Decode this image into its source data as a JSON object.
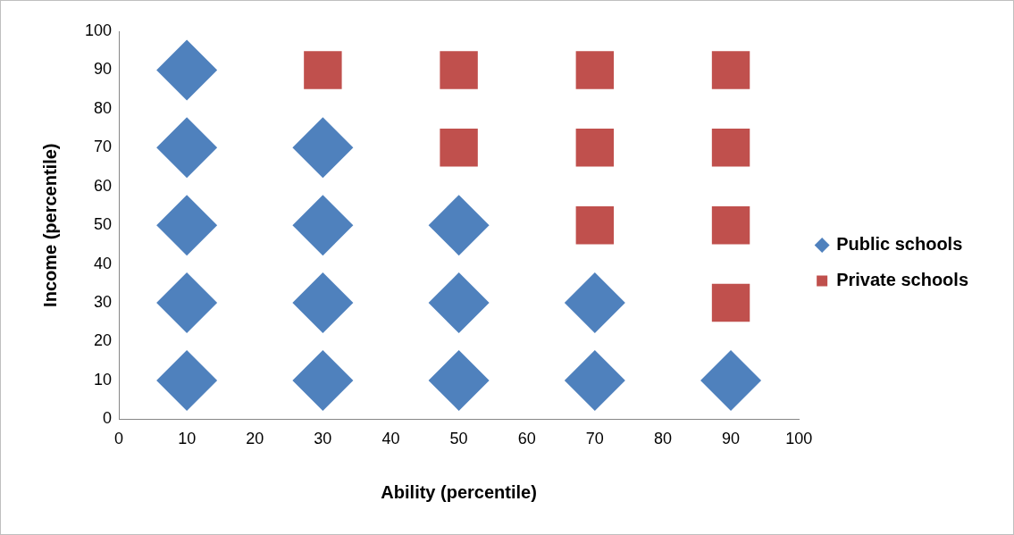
{
  "chart_data": {
    "type": "scatter",
    "xlabel": "Ability (percentile)",
    "ylabel": "Income (percentile)",
    "xlim": [
      0,
      100
    ],
    "ylim": [
      0,
      100
    ],
    "xticks": [
      0,
      10,
      20,
      30,
      40,
      50,
      60,
      70,
      80,
      90,
      100
    ],
    "yticks": [
      0,
      10,
      20,
      30,
      40,
      50,
      60,
      70,
      80,
      90,
      100
    ],
    "grid": false,
    "legend": "right",
    "series": [
      {
        "name": "Public schools",
        "color": "#4f81bd",
        "marker": "diamond",
        "x": [
          10,
          10,
          30,
          10,
          30,
          50,
          10,
          30,
          50,
          70,
          10,
          30,
          50,
          70,
          90
        ],
        "values": [
          90,
          70,
          70,
          50,
          50,
          50,
          30,
          30,
          30,
          30,
          10,
          10,
          10,
          10,
          10
        ]
      },
      {
        "name": "Private schools",
        "color": "#c0504d",
        "marker": "square",
        "x": [
          30,
          50,
          70,
          90,
          50,
          70,
          90,
          70,
          90,
          90
        ],
        "values": [
          90,
          90,
          90,
          90,
          70,
          70,
          70,
          50,
          50,
          30
        ]
      }
    ]
  }
}
